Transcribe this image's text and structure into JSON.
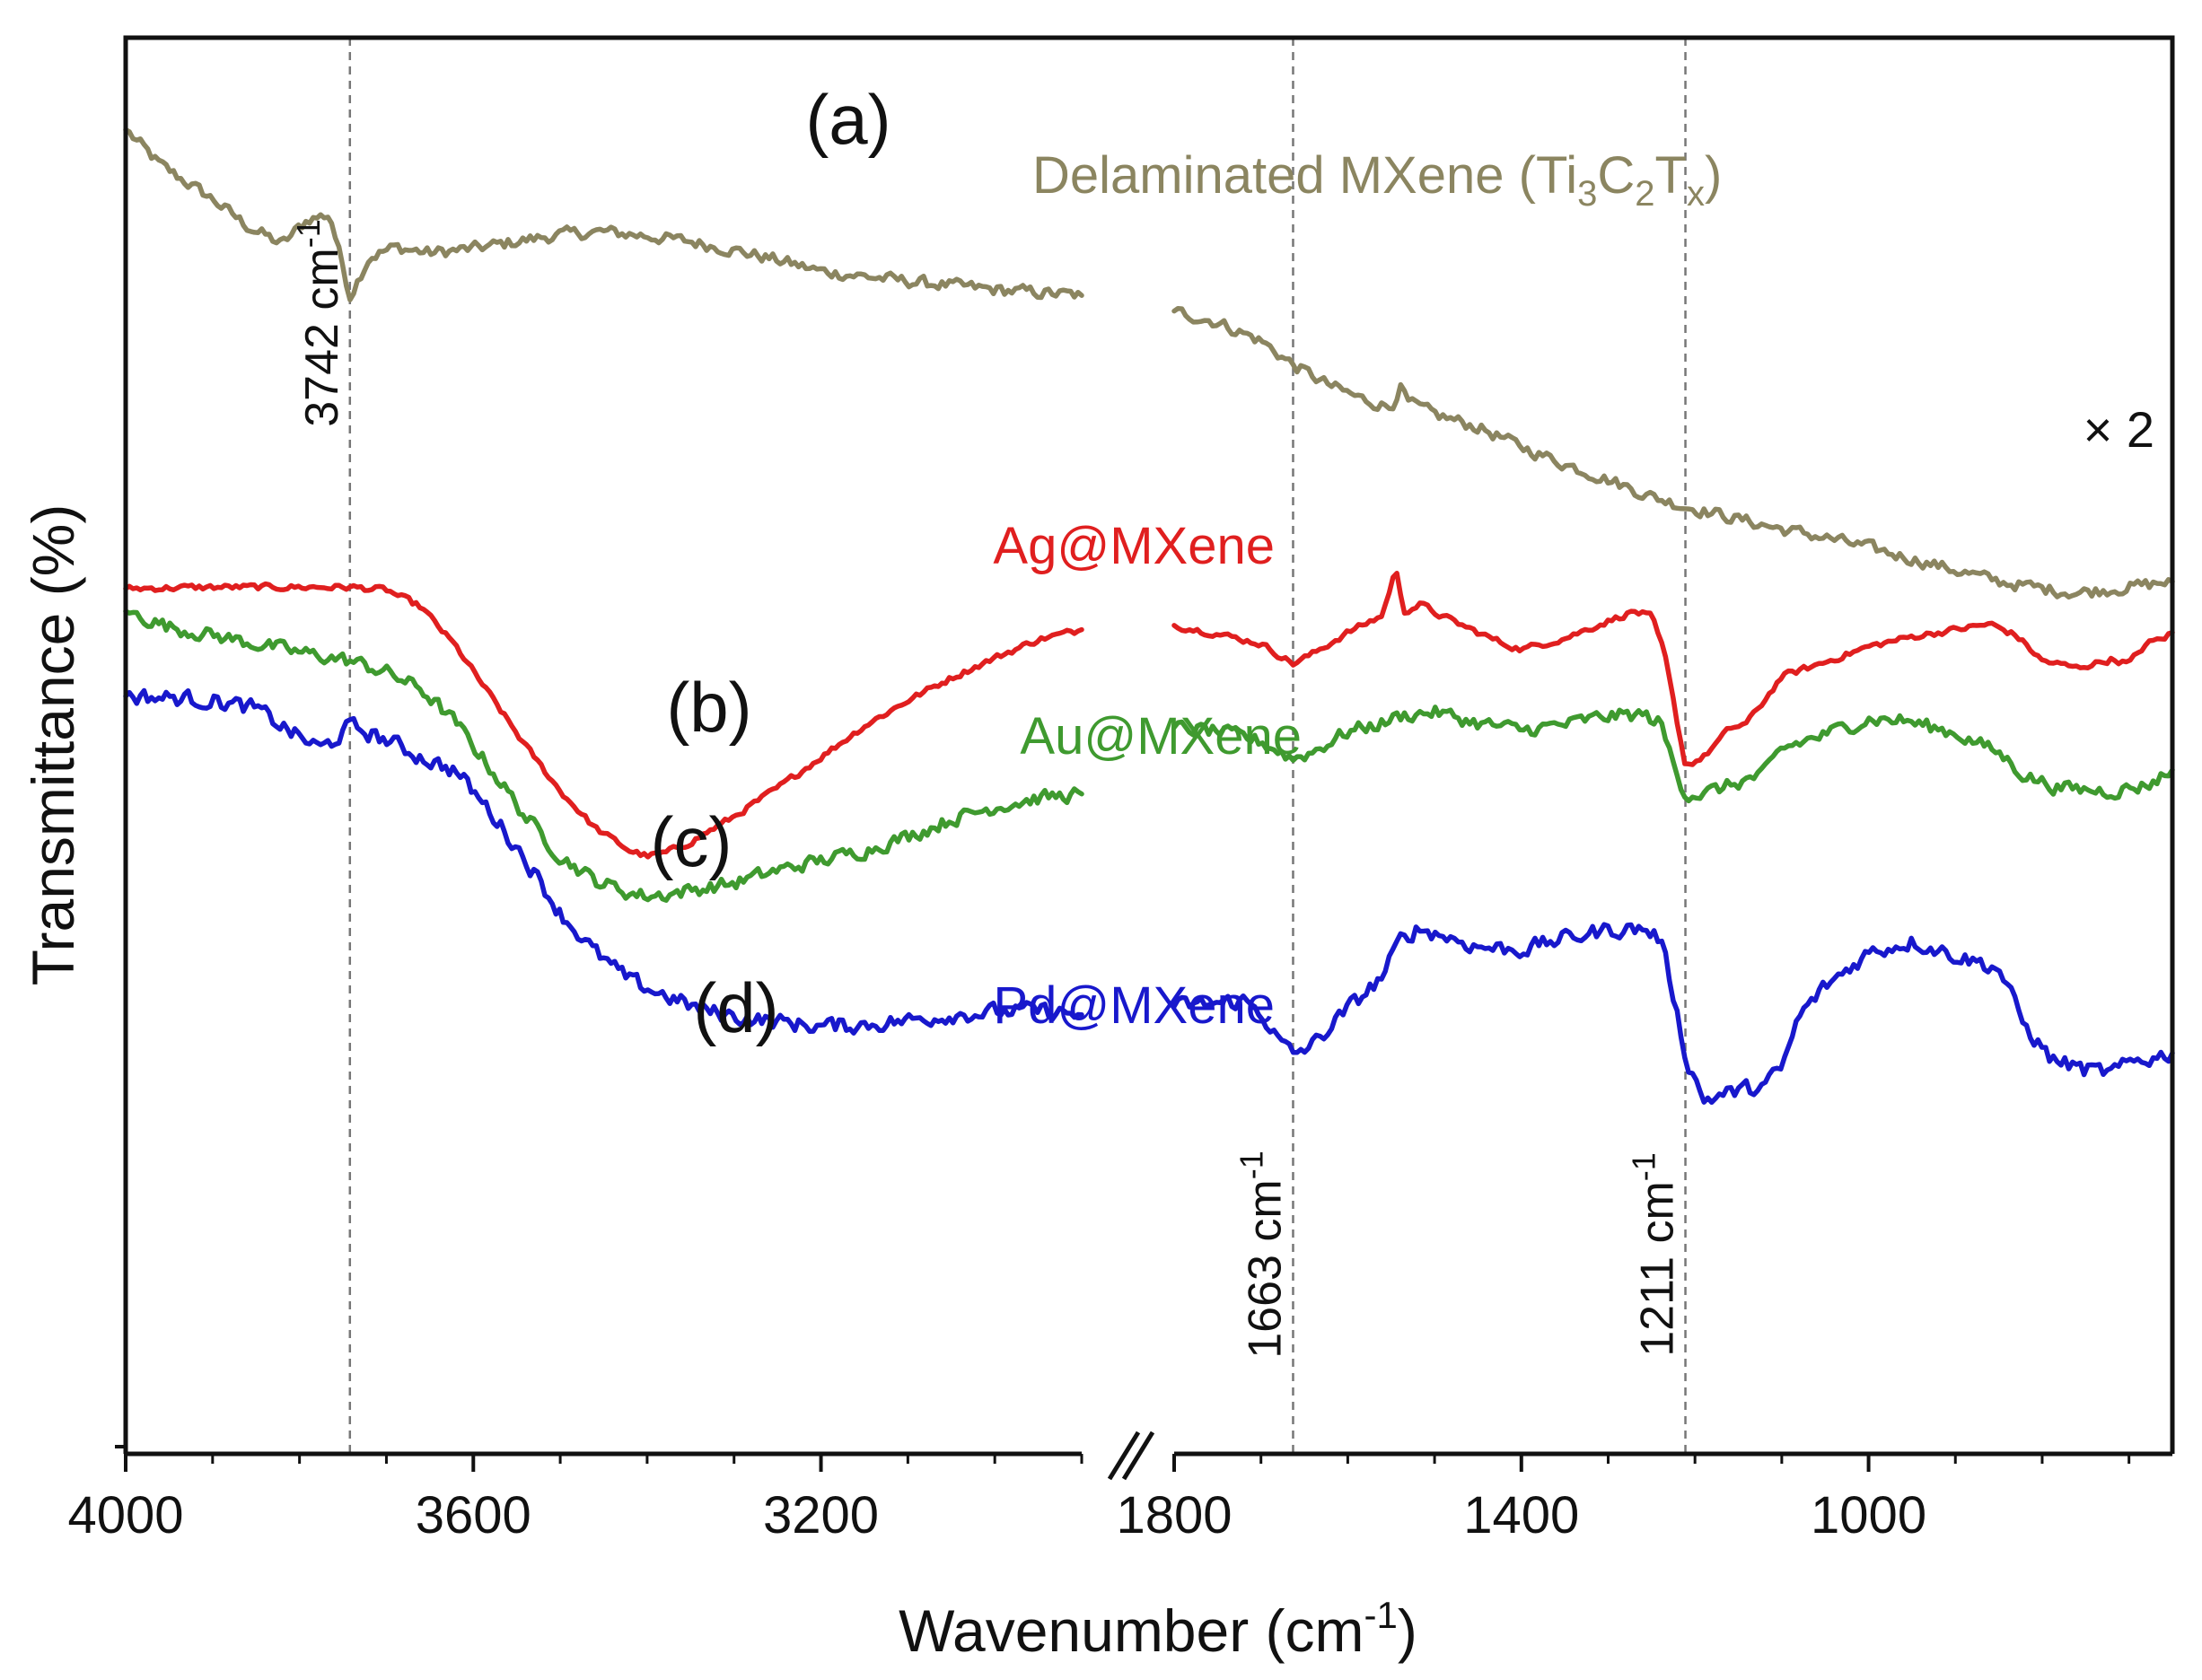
{
  "chart_data": {
    "type": "line",
    "xlabel": "Wavenumber (cm",
    "xlabel_sup": "-1",
    "xlabel_close": ")",
    "ylabel": "Transmittance (%)",
    "x_reversed": true,
    "axis_break": true,
    "x_segments": [
      {
        "range": [
          4000,
          2900
        ],
        "ticks": [
          "4000",
          "3600",
          "3200"
        ],
        "tick_values": [
          4000,
          3600,
          3200
        ],
        "minor_step": 100
      },
      {
        "range": [
          1800,
          650
        ],
        "ticks": [
          "1800",
          "1400",
          "1000"
        ],
        "tick_values": [
          1800,
          1400,
          1000
        ],
        "minor_step": 100
      }
    ],
    "y_ticks_shown": false,
    "reference_lines": [
      {
        "x": 3742,
        "label": "3742 cm",
        "sup": "-1"
      },
      {
        "x": 1663,
        "label": "1663 cm",
        "sup": "-1"
      },
      {
        "x": 1211,
        "label": "1211 cm",
        "sup": "-1"
      }
    ],
    "annotations": {
      "multiplier": "× 2"
    },
    "series": [
      {
        "id": "a",
        "letter": "(a)",
        "name": "Delaminated MXene (Ti",
        "name_parts": [
          "Delaminated MXene (Ti",
          "3",
          "C",
          "2",
          "T",
          "x",
          ")"
        ],
        "color": "#8b8560",
        "noise": 0.6,
        "seg1": [
          [
            4000,
            93.5
          ],
          [
            3960,
            91.0
          ],
          [
            3900,
            88.6
          ],
          [
            3860,
            86.7
          ],
          [
            3820,
            85.4
          ],
          [
            3790,
            87.2
          ],
          [
            3765,
            87.5
          ],
          [
            3742,
            81.8
          ],
          [
            3720,
            84.5
          ],
          [
            3690,
            85.2
          ],
          [
            3650,
            84.8
          ],
          [
            3600,
            85.1
          ],
          [
            3550,
            85.6
          ],
          [
            3500,
            86.1
          ],
          [
            3450,
            86.3
          ],
          [
            3400,
            86.0
          ],
          [
            3350,
            85.6
          ],
          [
            3300,
            85.0
          ],
          [
            3250,
            84.3
          ],
          [
            3200,
            83.5
          ],
          [
            3100,
            82.8
          ],
          [
            3000,
            82.2
          ],
          [
            2900,
            81.8
          ]
        ],
        "seg2": [
          [
            1800,
            80.7
          ],
          [
            1750,
            79.9
          ],
          [
            1700,
            78.6
          ],
          [
            1663,
            76.9
          ],
          [
            1620,
            75.4
          ],
          [
            1580,
            74.4
          ],
          [
            1550,
            73.9
          ],
          [
            1540,
            75.4
          ],
          [
            1530,
            74.2
          ],
          [
            1500,
            73.4
          ],
          [
            1450,
            72.5
          ],
          [
            1400,
            71.1
          ],
          [
            1350,
            69.9
          ],
          [
            1300,
            68.8
          ],
          [
            1250,
            67.6
          ],
          [
            1211,
            66.9
          ],
          [
            1150,
            66.0
          ],
          [
            1100,
            65.3
          ],
          [
            1050,
            64.7
          ],
          [
            1000,
            64.0
          ],
          [
            950,
            63.2
          ],
          [
            900,
            62.4
          ],
          [
            850,
            61.6
          ],
          [
            800,
            61.1
          ],
          [
            760,
            60.8
          ],
          [
            700,
            61.2
          ],
          [
            650,
            61.6
          ]
        ]
      },
      {
        "id": "b",
        "letter": "(b)",
        "name": "Ag@MXene",
        "color": "#e01f1f",
        "noise": 0.3,
        "seg1": [
          [
            4000,
            61.1
          ],
          [
            3900,
            61.2
          ],
          [
            3800,
            61.2
          ],
          [
            3742,
            61.2
          ],
          [
            3700,
            61.0
          ],
          [
            3660,
            59.8
          ],
          [
            3620,
            57.0
          ],
          [
            3580,
            53.5
          ],
          [
            3540,
            50.0
          ],
          [
            3500,
            46.8
          ],
          [
            3460,
            44.2
          ],
          [
            3420,
            42.6
          ],
          [
            3400,
            42.2
          ],
          [
            3380,
            42.4
          ],
          [
            3350,
            43.2
          ],
          [
            3300,
            45.0
          ],
          [
            3250,
            47.0
          ],
          [
            3200,
            49.2
          ],
          [
            3150,
            51.4
          ],
          [
            3100,
            53.2
          ],
          [
            3050,
            54.8
          ],
          [
            3000,
            56.2
          ],
          [
            2950,
            57.5
          ],
          [
            2900,
            58.2
          ]
        ],
        "seg2": [
          [
            1800,
            58.5
          ],
          [
            1750,
            57.9
          ],
          [
            1700,
            57.2
          ],
          [
            1663,
            55.8
          ],
          [
            1640,
            56.5
          ],
          [
            1600,
            58.0
          ],
          [
            1560,
            59.2
          ],
          [
            1545,
            62.5
          ],
          [
            1535,
            59.5
          ],
          [
            1515,
            60.0
          ],
          [
            1500,
            59.4
          ],
          [
            1450,
            58.0
          ],
          [
            1420,
            57.2
          ],
          [
            1400,
            56.8
          ],
          [
            1350,
            57.6
          ],
          [
            1300,
            58.8
          ],
          [
            1270,
            59.5
          ],
          [
            1250,
            59.1
          ],
          [
            1235,
            56.5
          ],
          [
            1220,
            51.5
          ],
          [
            1211,
            48.6
          ],
          [
            1190,
            49.2
          ],
          [
            1160,
            51.2
          ],
          [
            1140,
            51.6
          ],
          [
            1120,
            53.2
          ],
          [
            1100,
            54.9
          ],
          [
            1050,
            55.9
          ],
          [
            1000,
            57.0
          ],
          [
            950,
            57.7
          ],
          [
            900,
            58.2
          ],
          [
            860,
            58.6
          ],
          [
            830,
            57.8
          ],
          [
            800,
            56.0
          ],
          [
            760,
            55.5
          ],
          [
            720,
            56.1
          ],
          [
            700,
            55.8
          ],
          [
            680,
            57.2
          ],
          [
            660,
            57.6
          ],
          [
            650,
            58.0
          ]
        ]
      },
      {
        "id": "c",
        "letter": "(c)",
        "name": "Au@MXene",
        "color": "#3f9a2f",
        "noise": 0.7,
        "seg1": [
          [
            4000,
            59.5
          ],
          [
            3950,
            58.4
          ],
          [
            3900,
            57.8
          ],
          [
            3850,
            57.2
          ],
          [
            3800,
            56.6
          ],
          [
            3742,
            56.0
          ],
          [
            3700,
            55.2
          ],
          [
            3660,
            54.0
          ],
          [
            3620,
            51.6
          ],
          [
            3580,
            48.4
          ],
          [
            3540,
            45.0
          ],
          [
            3500,
            42.2
          ],
          [
            3460,
            40.5
          ],
          [
            3420,
            39.6
          ],
          [
            3400,
            39.4
          ],
          [
            3380,
            39.5
          ],
          [
            3350,
            39.8
          ],
          [
            3300,
            40.3
          ],
          [
            3250,
            41.2
          ],
          [
            3200,
            41.9
          ],
          [
            3150,
            42.6
          ],
          [
            3100,
            43.6
          ],
          [
            3050,
            44.8
          ],
          [
            3000,
            45.7
          ],
          [
            2950,
            46.3
          ],
          [
            2900,
            46.6
          ]
        ],
        "seg2": [
          [
            1800,
            51.3
          ],
          [
            1750,
            51.0
          ],
          [
            1700,
            50.3
          ],
          [
            1663,
            49.1
          ],
          [
            1640,
            49.6
          ],
          [
            1600,
            51.0
          ],
          [
            1560,
            51.6
          ],
          [
            1540,
            52.1
          ],
          [
            1500,
            52.4
          ],
          [
            1450,
            51.6
          ],
          [
            1400,
            51.1
          ],
          [
            1350,
            51.5
          ],
          [
            1300,
            52.1
          ],
          [
            1260,
            52.2
          ],
          [
            1240,
            51.6
          ],
          [
            1225,
            48.8
          ],
          [
            1211,
            46.6
          ],
          [
            1190,
            46.6
          ],
          [
            1160,
            47.2
          ],
          [
            1120,
            48.0
          ],
          [
            1100,
            49.8
          ],
          [
            1050,
            50.8
          ],
          [
            1000,
            51.9
          ],
          [
            960,
            51.8
          ],
          [
            900,
            50.9
          ],
          [
            850,
            49.5
          ],
          [
            820,
            47.9
          ],
          [
            780,
            47.0
          ],
          [
            720,
            46.8
          ],
          [
            680,
            47.2
          ],
          [
            650,
            48.3
          ]
        ]
      },
      {
        "id": "d",
        "letter": "(d)",
        "name": "Pd@MXene",
        "color": "#1818cc",
        "noise": 0.8,
        "seg1": [
          [
            4000,
            53.5
          ],
          [
            3950,
            53.4
          ],
          [
            3900,
            53.2
          ],
          [
            3850,
            52.6
          ],
          [
            3800,
            50.6
          ],
          [
            3775,
            49.8
          ],
          [
            3760,
            50.4
          ],
          [
            3742,
            51.4
          ],
          [
            3700,
            50.4
          ],
          [
            3660,
            49.2
          ],
          [
            3620,
            48.2
          ],
          [
            3580,
            45.3
          ],
          [
            3540,
            42.0
          ],
          [
            3500,
            38.2
          ],
          [
            3460,
            35.4
          ],
          [
            3420,
            33.4
          ],
          [
            3380,
            32.4
          ],
          [
            3340,
            31.4
          ],
          [
            3300,
            30.9
          ],
          [
            3250,
            30.5
          ],
          [
            3200,
            30.2
          ],
          [
            3150,
            30.3
          ],
          [
            3100,
            30.6
          ],
          [
            3050,
            31.0
          ],
          [
            3000,
            31.2
          ],
          [
            2950,
            31.3
          ],
          [
            2900,
            31.0
          ]
        ],
        "seg2": [
          [
            1800,
            31.6
          ],
          [
            1750,
            31.8
          ],
          [
            1720,
            32.0
          ],
          [
            1700,
            31.2
          ],
          [
            1680,
            29.2
          ],
          [
            1663,
            28.2
          ],
          [
            1640,
            28.9
          ],
          [
            1600,
            31.4
          ],
          [
            1560,
            33.7
          ],
          [
            1540,
            36.2
          ],
          [
            1520,
            37.1
          ],
          [
            1500,
            36.8
          ],
          [
            1450,
            35.8
          ],
          [
            1400,
            35.6
          ],
          [
            1350,
            36.4
          ],
          [
            1300,
            37.0
          ],
          [
            1260,
            37.1
          ],
          [
            1240,
            36.4
          ],
          [
            1225,
            32.5
          ],
          [
            1211,
            28.1
          ],
          [
            1190,
            25.0
          ],
          [
            1160,
            25.5
          ],
          [
            1120,
            26.0
          ],
          [
            1100,
            27.2
          ],
          [
            1080,
            30.9
          ],
          [
            1050,
            33.0
          ],
          [
            1000,
            35.4
          ],
          [
            950,
            36.2
          ],
          [
            900,
            35.2
          ],
          [
            850,
            34.3
          ],
          [
            820,
            30.2
          ],
          [
            790,
            27.9
          ],
          [
            750,
            27.1
          ],
          [
            720,
            26.9
          ],
          [
            690,
            27.8
          ],
          [
            670,
            28.0
          ],
          [
            650,
            28.3
          ]
        ]
      }
    ]
  }
}
